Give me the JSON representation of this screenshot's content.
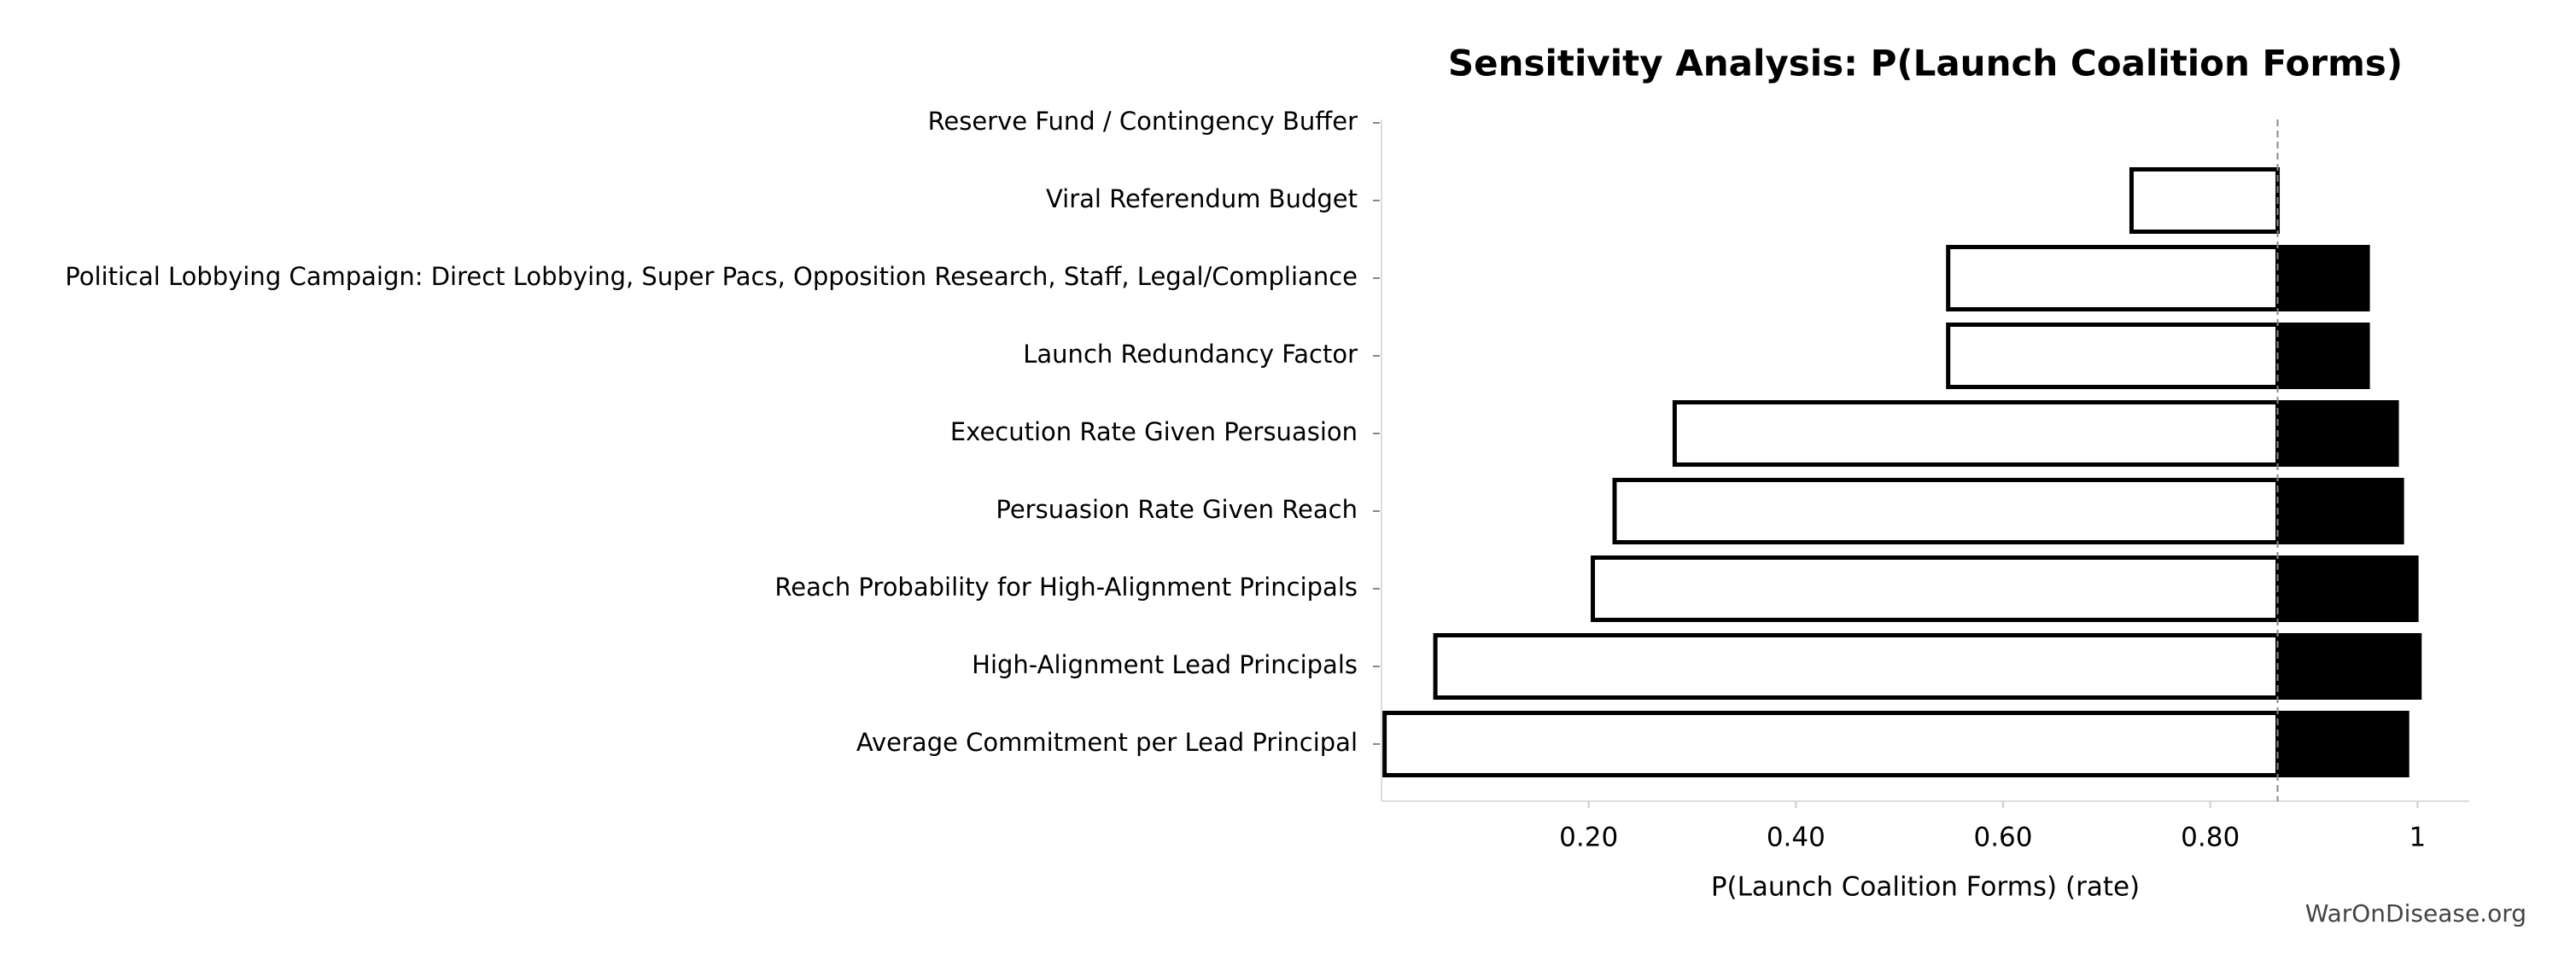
{
  "chart_data": {
    "type": "tornado",
    "title": "Sensitivity Analysis: P(Launch Coalition Forms)",
    "xlabel": "P(Launch Coalition Forms) (rate)",
    "watermark": "WarOnDisease.org",
    "categories": [
      "Reserve Fund / Contingency Buffer",
      "Viral Referendum Budget",
      "Political Lobbying Campaign: Direct Lobbying, Super Pacs, Opposition Research, Staff, Legal/Compliance",
      "Launch Redundancy Factor",
      "Execution Rate Given Persuasion",
      "Persuasion Rate Given Reach",
      "Reach Probability for High-Alignment Principals",
      "High-Alignment Lead Principals",
      "Average Commitment per Lead Principal"
    ],
    "baseline": 0.865,
    "series": [
      {
        "color": "#ffffff",
        "values": [
          0.865,
          0.724,
          0.547,
          0.547,
          0.283,
          0.225,
          0.204,
          0.052,
          0.003
        ]
      },
      {
        "color": "#000000",
        "values": [
          0.865,
          0.865,
          0.952,
          0.952,
          0.98,
          0.985,
          0.999,
          1.002,
          0.99
        ]
      }
    ],
    "xlim": [
      0,
      1.05
    ],
    "xticks": [
      {
        "value": 0.2,
        "label": "0.20"
      },
      {
        "value": 0.4,
        "label": "0.40"
      },
      {
        "value": 0.6,
        "label": "0.60"
      },
      {
        "value": 0.8,
        "label": "0.80"
      },
      1
    ]
  }
}
